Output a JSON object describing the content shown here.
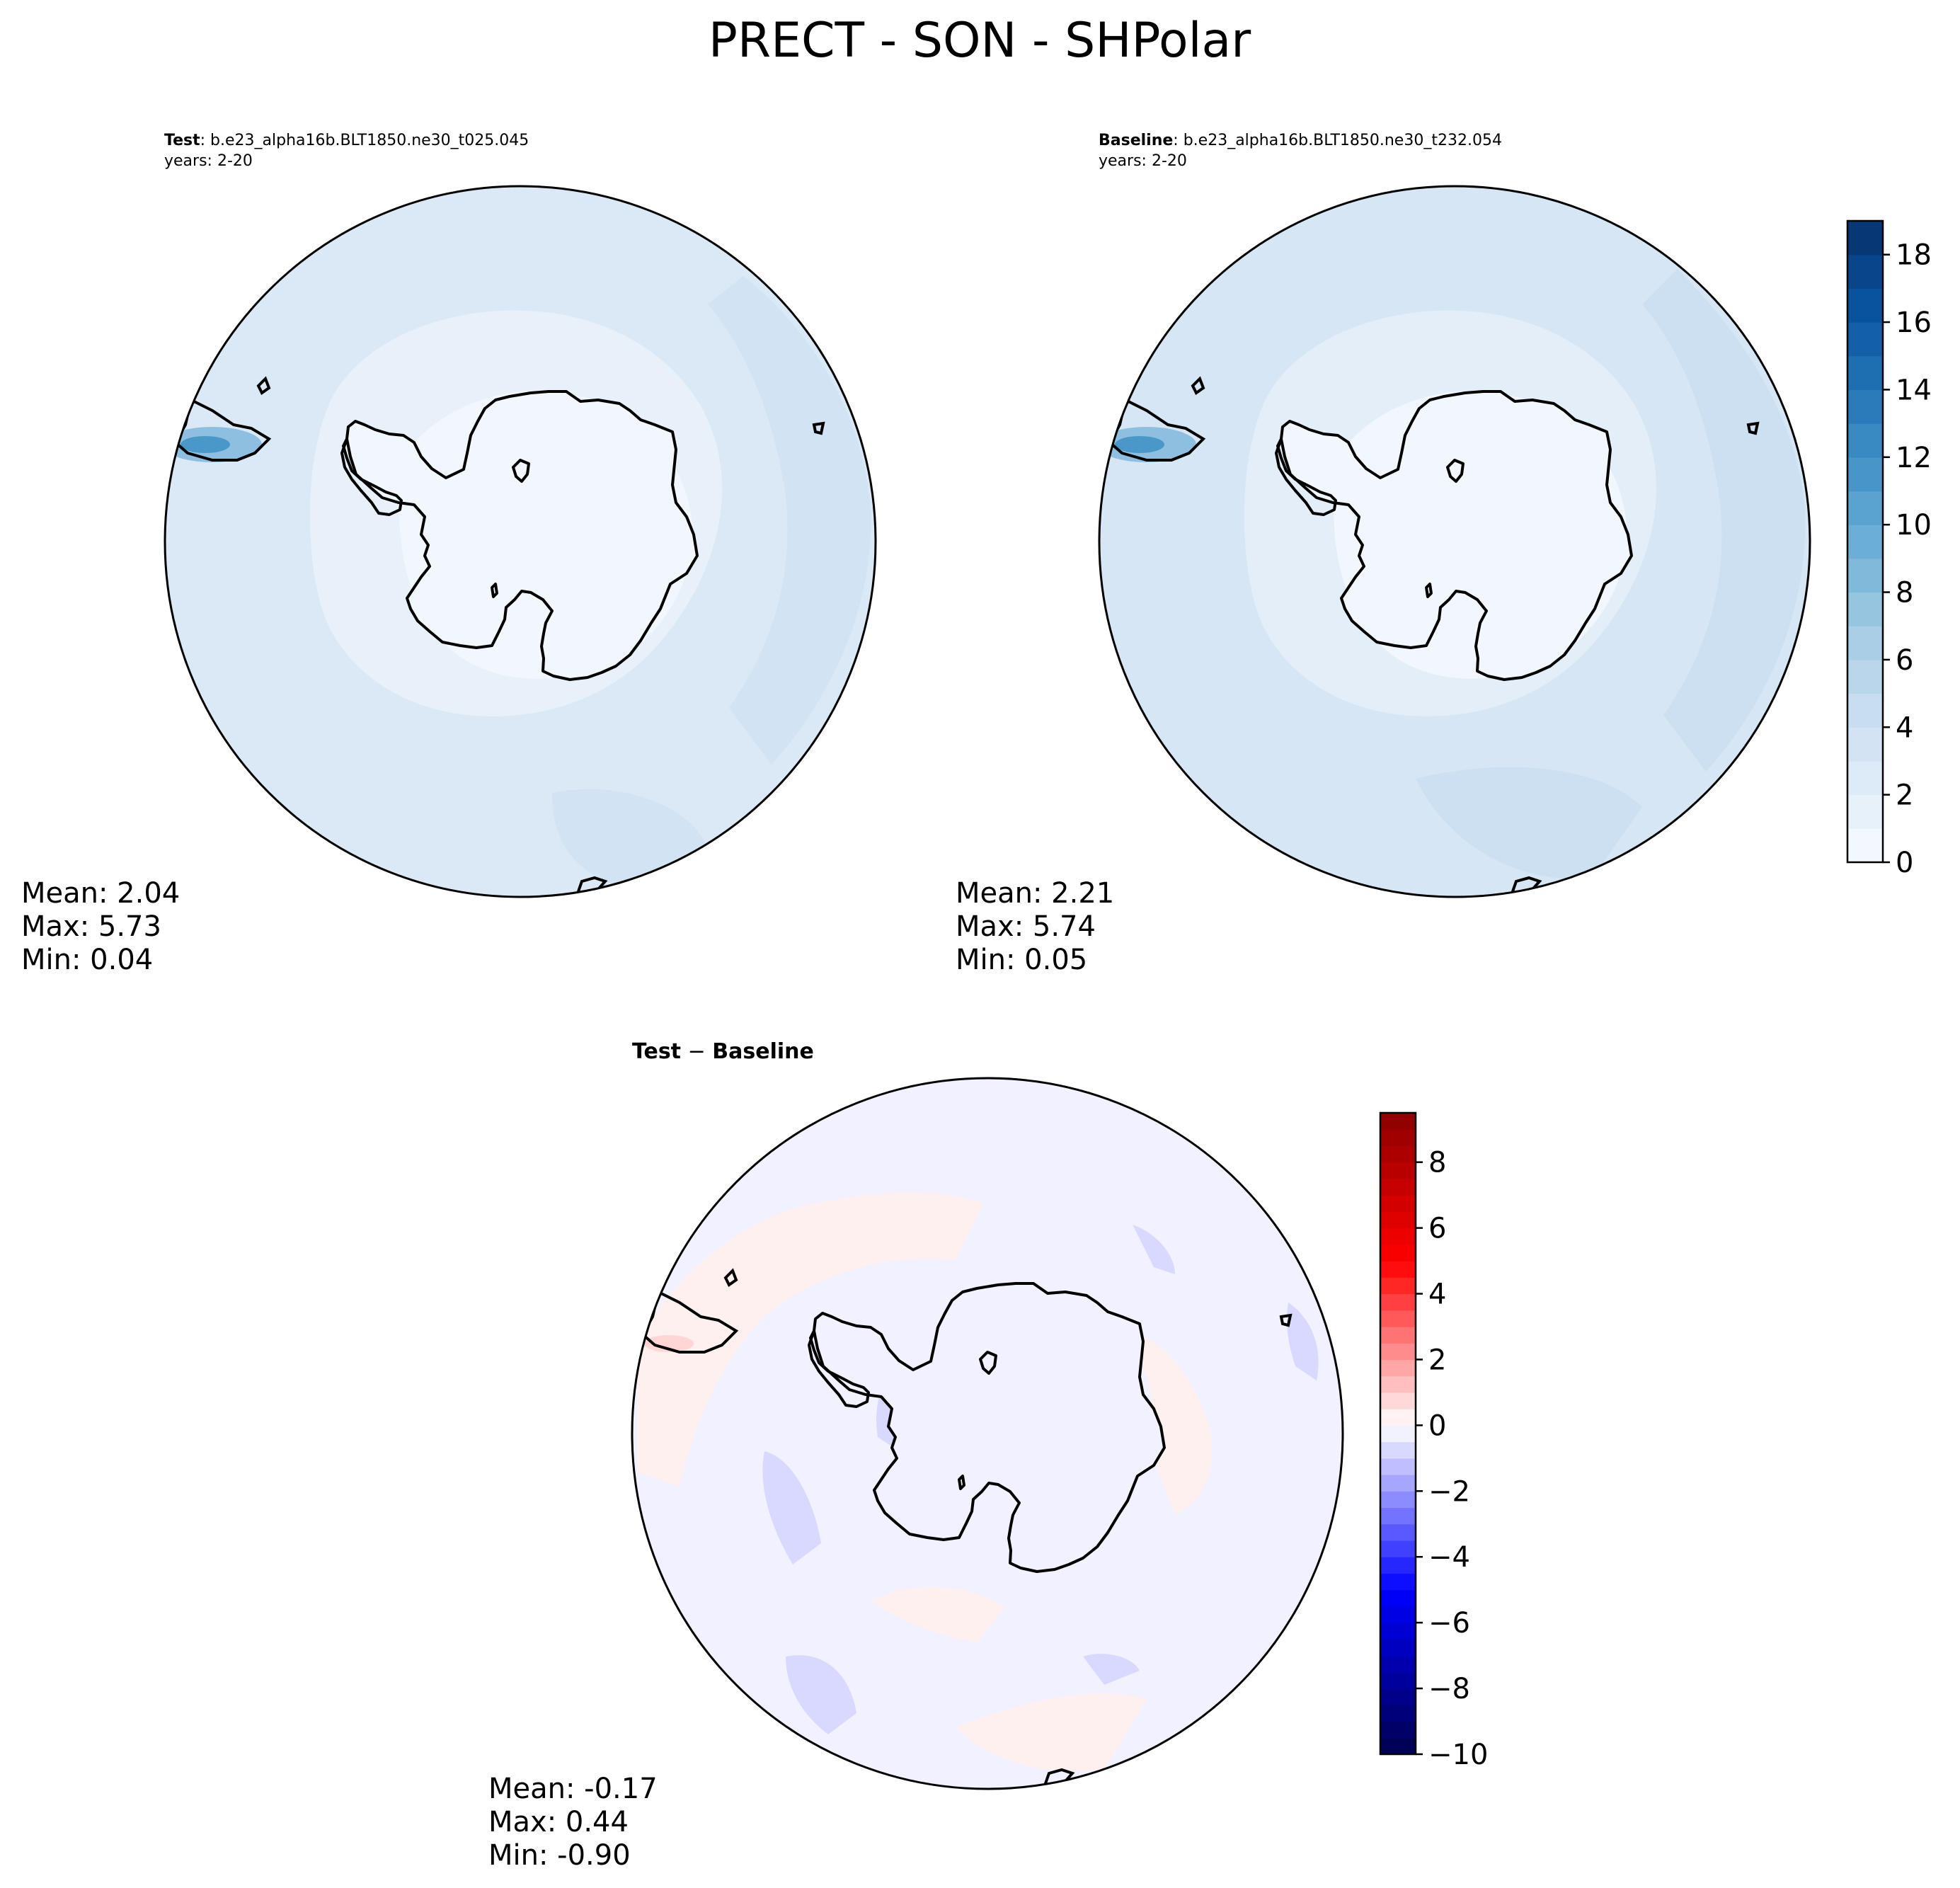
{
  "figure": {
    "title": "PRECT - SON - SHPolar"
  },
  "panels": {
    "test": {
      "label_bold": "Test",
      "label_case": ": b.e23_alpha16b.BLT1850.ne30_t025.045",
      "years": "years: 2-20",
      "stats": {
        "mean": "Mean:  2.04",
        "max": "Max:  5.73",
        "min": "Min:  0.04"
      }
    },
    "baseline": {
      "label_bold": "Baseline",
      "label_case": ": b.e23_alpha16b.BLT1850.ne30_t232.054",
      "years": "years: 2-20",
      "stats": {
        "mean": "Mean:  2.21",
        "max": "Max:  5.74",
        "min": "Min:  0.05"
      }
    },
    "diff": {
      "title_a": "Test",
      "title_sep": " − ",
      "title_b": "Baseline",
      "stats": {
        "mean": "Mean: -0.17",
        "max": "Max:  0.44",
        "min": "Min: -0.90"
      }
    }
  },
  "colorbars": {
    "main": {
      "colormap": "Blues",
      "range": [
        0,
        19
      ],
      "levels": 19,
      "ticks": [
        "0",
        "2",
        "4",
        "6",
        "8",
        "10",
        "12",
        "14",
        "16",
        "18"
      ],
      "low_color": "#f7fbff",
      "high_color": "#08306b"
    },
    "diff": {
      "colormap": "seismic",
      "range": [
        -10,
        9.5
      ],
      "ticks": [
        "−10",
        "−8",
        "−6",
        "−4",
        "−2",
        "0",
        "2",
        "4",
        "6",
        "8"
      ],
      "low_color": "#00004d",
      "high_color": "#800000"
    }
  }
}
